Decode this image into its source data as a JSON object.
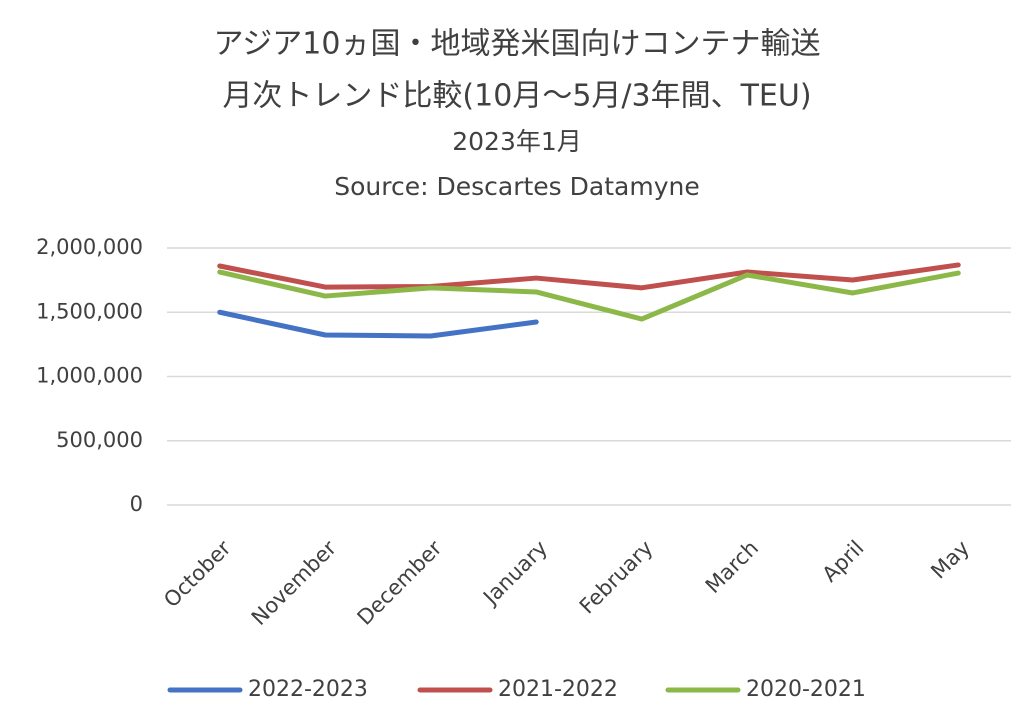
{
  "chart_data": {
    "type": "line",
    "title": "アジア10ヵ国・地域発米国向けコンテナ輸送",
    "subtitle": "月次トレンド比較(10月～5月/3年間、TEU)",
    "date": "2023年1月",
    "source": "Source: Descartes Datamyne",
    "categories": [
      "October",
      "November",
      "December",
      "January",
      "February",
      "March",
      "April",
      "May"
    ],
    "series": [
      {
        "name": "2022-2023",
        "color": "#4472c4",
        "values": [
          1500000,
          1323000,
          1315000,
          1424000,
          null,
          null,
          null,
          null
        ]
      },
      {
        "name": "2021-2022",
        "color": "#c0504d",
        "values": [
          1860000,
          1696000,
          1700000,
          1766000,
          1690000,
          1813000,
          1751000,
          1868000
        ]
      },
      {
        "name": "2020-2021",
        "color": "#8cb84a",
        "values": [
          1813000,
          1626000,
          1690000,
          1658000,
          1447000,
          1790000,
          1650000,
          1805000
        ]
      }
    ],
    "ylim": [
      0,
      2000000
    ],
    "yticks": [
      0,
      {
        "value": 500000,
        "label": "500,000"
      },
      {
        "value": 1000000,
        "label": "1,000,000"
      },
      {
        "value": 1500000,
        "label": "1,500,000"
      },
      {
        "value": 2000000,
        "label": "2,000,000"
      }
    ],
    "grid": true,
    "legend": "bottom"
  }
}
